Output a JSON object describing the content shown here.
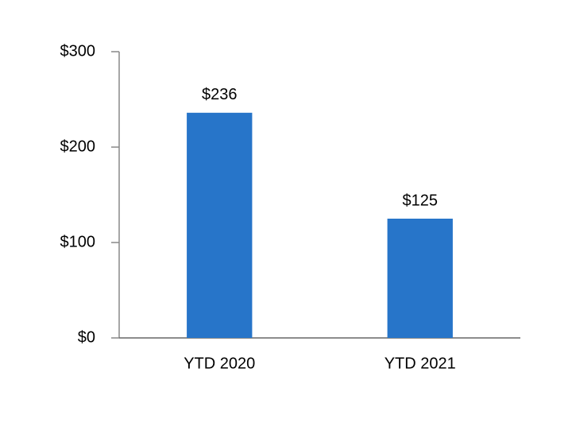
{
  "chart_data": {
    "type": "bar",
    "categories": [
      "YTD 2020",
      "YTD 2021"
    ],
    "values": [
      236,
      125
    ],
    "value_labels": [
      "$236",
      "$125"
    ],
    "color": "#2775c9",
    "ylim": [
      0,
      300
    ],
    "yticks": [
      {
        "value": 0,
        "label": "$0"
      },
      {
        "value": 100,
        "label": "$100"
      },
      {
        "value": 200,
        "label": "$200"
      },
      {
        "value": 300,
        "label": "$300"
      }
    ],
    "grid": false
  }
}
